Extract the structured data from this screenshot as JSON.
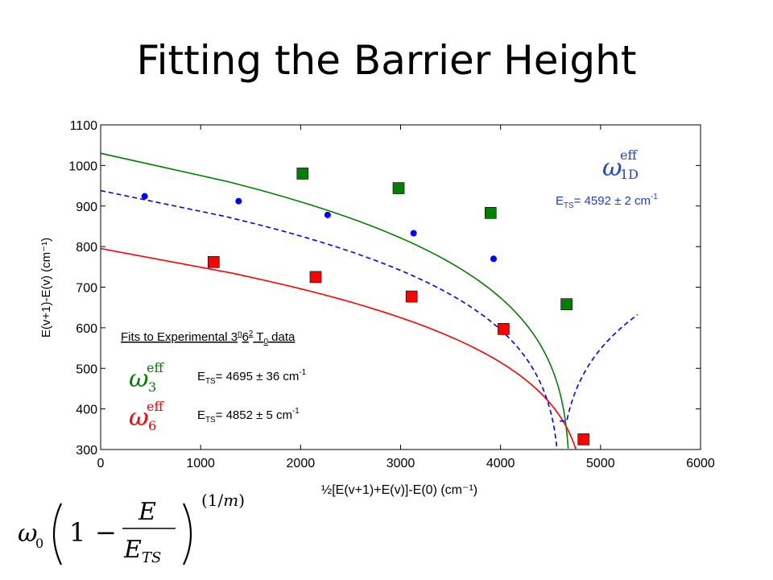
{
  "slide": {
    "title": "Fitting the Barrier Height",
    "fit_heading": "Fits to Experimental 3ⁿ6² T₀ data",
    "formula": "ω₀ (1 − E / E_TS)^(1/m)"
  },
  "chart_data": {
    "type": "scatter",
    "xlabel": "½[E(v+1)+E(v)]-E(0)  (cm⁻¹)",
    "ylabel": "E(v+1)-E(v)  (cm⁻¹)",
    "xlim": [
      0,
      6000
    ],
    "ylim": [
      300,
      1100
    ],
    "xticks": [
      0,
      1000,
      2000,
      3000,
      4000,
      5000,
      6000
    ],
    "yticks": [
      300,
      400,
      500,
      600,
      700,
      800,
      900,
      1000,
      1100
    ],
    "grid": false,
    "series": [
      {
        "name": "ω_3^eff",
        "color": "#008000",
        "marker": "square",
        "points": [
          [
            2020,
            980
          ],
          [
            2980,
            944
          ],
          [
            3900,
            883
          ],
          [
            4660,
            658
          ]
        ],
        "fit": {
          "omega0": 1030,
          "E_TS": 4695,
          "m": 4.5,
          "style": "solid"
        },
        "label_text": "E_TS= 4695 ± 36 cm⁻¹"
      },
      {
        "name": "ω_6^eff",
        "color": "#ff0000",
        "marker": "square",
        "points": [
          [
            1130,
            762
          ],
          [
            2150,
            725
          ],
          [
            3110,
            677
          ],
          [
            4030,
            597
          ],
          [
            4830,
            325
          ]
        ],
        "fit": {
          "omega0": 795,
          "E_TS": 4852,
          "m": 4.0,
          "style": "solid"
        },
        "label_text": "E_TS= 4852 ± 5 cm⁻¹"
      },
      {
        "name": "ω_1D^eff",
        "color": "#0000ff",
        "marker": "dot",
        "points": [
          [
            440,
            924
          ],
          [
            1380,
            912
          ],
          [
            2270,
            878
          ],
          [
            3130,
            833
          ],
          [
            3930,
            770
          ]
        ],
        "fit": {
          "omega0": 938,
          "E_TS": 4592,
          "m": 4.5,
          "style": "dashed"
        },
        "label_text": "E_TS= 4592 ± 2 cm⁻¹"
      }
    ]
  }
}
